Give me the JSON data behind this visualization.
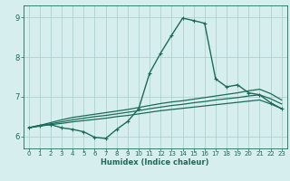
{
  "xlabel": "Humidex (Indice chaleur)",
  "ylabel": "",
  "background_color": "#d6eeee",
  "grid_color": "#a8cccc",
  "line_color": "#1a6b5a",
  "xlim": [
    -0.5,
    23.5
  ],
  "ylim": [
    5.7,
    9.3
  ],
  "xticks": [
    0,
    1,
    2,
    3,
    4,
    5,
    6,
    7,
    8,
    9,
    10,
    11,
    12,
    13,
    14,
    15,
    16,
    17,
    18,
    19,
    20,
    21,
    22,
    23
  ],
  "yticks": [
    6,
    7,
    8,
    9
  ],
  "lines": [
    {
      "x": [
        0,
        1,
        2,
        3,
        4,
        5,
        6,
        7,
        8,
        9,
        10,
        11,
        12,
        13,
        14,
        15,
        16,
        17,
        18,
        19,
        20,
        21,
        22,
        23
      ],
      "y": [
        6.22,
        6.28,
        6.3,
        6.22,
        6.18,
        6.12,
        5.98,
        5.95,
        6.18,
        6.38,
        6.7,
        7.6,
        8.1,
        8.55,
        8.98,
        8.92,
        8.85,
        7.45,
        7.25,
        7.3,
        7.1,
        7.05,
        6.85,
        6.7
      ],
      "marker": true,
      "linewidth": 1.0
    },
    {
      "x": [
        0,
        1,
        2,
        3,
        4,
        5,
        6,
        7,
        8,
        9,
        10,
        11,
        12,
        13,
        14,
        15,
        16,
        17,
        18,
        19,
        20,
        21,
        22,
        23
      ],
      "y": [
        6.22,
        6.28,
        6.35,
        6.42,
        6.48,
        6.52,
        6.56,
        6.6,
        6.64,
        6.68,
        6.73,
        6.78,
        6.83,
        6.87,
        6.9,
        6.94,
        6.98,
        7.02,
        7.06,
        7.1,
        7.15,
        7.19,
        7.08,
        6.92
      ],
      "marker": false,
      "linewidth": 0.9
    },
    {
      "x": [
        0,
        1,
        2,
        3,
        4,
        5,
        6,
        7,
        8,
        9,
        10,
        11,
        12,
        13,
        14,
        15,
        16,
        17,
        18,
        19,
        20,
        21,
        22,
        23
      ],
      "y": [
        6.22,
        6.27,
        6.32,
        6.37,
        6.42,
        6.46,
        6.5,
        6.53,
        6.57,
        6.61,
        6.65,
        6.7,
        6.74,
        6.78,
        6.81,
        6.85,
        6.88,
        6.92,
        6.95,
        6.98,
        7.02,
        7.05,
        6.95,
        6.82
      ],
      "marker": false,
      "linewidth": 0.9
    },
    {
      "x": [
        0,
        1,
        2,
        3,
        4,
        5,
        6,
        7,
        8,
        9,
        10,
        11,
        12,
        13,
        14,
        15,
        16,
        17,
        18,
        19,
        20,
        21,
        22,
        23
      ],
      "y": [
        6.22,
        6.26,
        6.3,
        6.33,
        6.37,
        6.4,
        6.43,
        6.46,
        6.5,
        6.53,
        6.57,
        6.61,
        6.65,
        6.68,
        6.71,
        6.74,
        6.77,
        6.8,
        6.83,
        6.86,
        6.89,
        6.92,
        6.82,
        6.7
      ],
      "marker": false,
      "linewidth": 0.9
    }
  ]
}
